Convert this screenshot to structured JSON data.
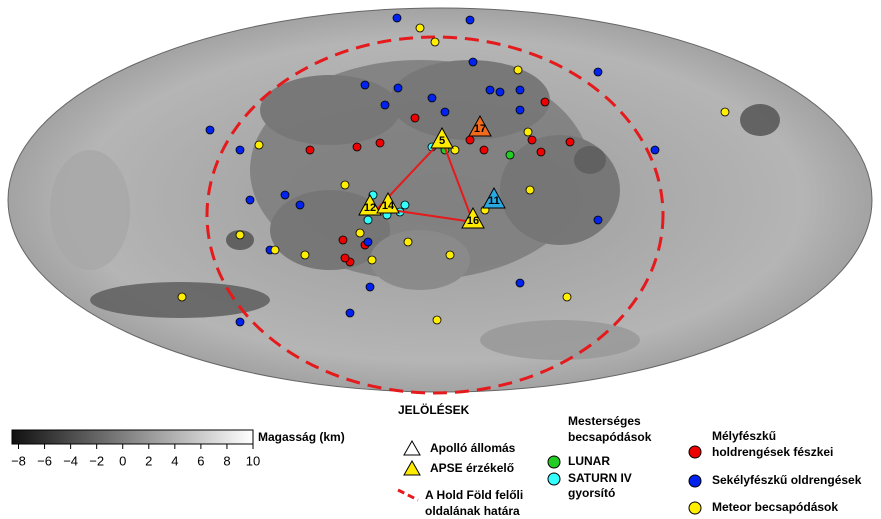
{
  "map": {
    "stations": [
      {
        "label": "5"
      },
      {
        "label": "17"
      },
      {
        "label": "12"
      },
      {
        "label": "14"
      },
      {
        "label": "16"
      },
      {
        "label": "11"
      }
    ]
  },
  "colorbar": {
    "label": "Magasság (km)",
    "range": [
      -8.5,
      10
    ],
    "ticks": [
      {
        "value": -8,
        "label": "−8"
      },
      {
        "value": -6,
        "label": "−6"
      },
      {
        "value": -4,
        "label": "−4"
      },
      {
        "value": -2,
        "label": "−2"
      },
      0,
      2,
      4,
      6,
      8,
      10
    ]
  },
  "legend": {
    "title": "JELÖLÉSEK",
    "apollo": "Apolló állomás",
    "apse": "APSE érzékelő",
    "boundary": [
      "A Hold Föld felőli",
      "oldalának határa"
    ],
    "artificial_title": [
      "Mesterséges",
      "becsapódások"
    ],
    "lunar": "LUNAR",
    "saturn": [
      "SATURN IV",
      "gyorsító"
    ],
    "deep": [
      "Mélyfészkű",
      "holdrengések fészkei"
    ],
    "shallow": "Sekélyfészkű oldrengések",
    "meteor": "Meteor becsapódások"
  }
}
